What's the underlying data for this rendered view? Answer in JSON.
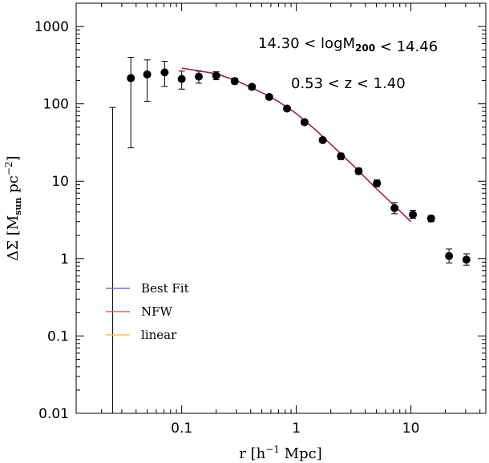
{
  "chart_data": {
    "type": "scatter",
    "x_scale": "log",
    "y_scale": "log",
    "xlim": [
      0.012,
      45
    ],
    "ylim": [
      0.01,
      2000
    ],
    "xlabel": {
      "main": "r  [h",
      "sup": "−1",
      "tail": " Mpc]"
    },
    "ylabel": {
      "pre": "ΔΣ  [M",
      "sub": "sun",
      "mid": "  pc",
      "sup": "−2",
      "tail": "]"
    },
    "x_ticks": [
      {
        "value": 0.1,
        "label": "0.1"
      },
      {
        "value": 1,
        "label": "1"
      },
      {
        "value": 10,
        "label": "10"
      }
    ],
    "y_ticks": [
      {
        "value": 0.01,
        "label": "0.01"
      },
      {
        "value": 0.1,
        "label": "0.1"
      },
      {
        "value": 1,
        "label": "1"
      },
      {
        "value": 10,
        "label": "10"
      },
      {
        "value": 100,
        "label": "100"
      },
      {
        "value": 1000,
        "label": "1000"
      }
    ],
    "annotations": [
      {
        "parts": [
          {
            "t": "14.30  <  logM"
          },
          {
            "t": "200",
            "sub": true
          },
          {
            "t": "  <  14.46"
          }
        ]
      },
      {
        "parts": [
          {
            "t": "0.53  <  z  <  1.40"
          }
        ]
      }
    ],
    "legend": {
      "position": "lower-left",
      "entries": [
        {
          "label": "Best Fit",
          "color": "#6f6ff0"
        },
        {
          "label": "NFW",
          "color": "#ef5a5a"
        },
        {
          "label": "linear",
          "color": "#f2c24a"
        }
      ]
    },
    "fit_curve": {
      "color": "#a02050",
      "points": [
        [
          0.1,
          290
        ],
        [
          0.2,
          245
        ],
        [
          0.3,
          200
        ],
        [
          0.5,
          140
        ],
        [
          0.7,
          107
        ],
        [
          1.0,
          75
        ],
        [
          1.5,
          45
        ],
        [
          2.0,
          30
        ],
        [
          3.0,
          17
        ],
        [
          5.0,
          8
        ],
        [
          7.0,
          5
        ],
        [
          10.0,
          3
        ]
      ]
    },
    "points": [
      {
        "x": 0.025,
        "y": null,
        "ylo": 0.01,
        "yhi": 90
      },
      {
        "x": 0.036,
        "y": 215,
        "ylo": 27,
        "yhi": 400
      },
      {
        "x": 0.05,
        "y": 240,
        "ylo": 108,
        "yhi": 370
      },
      {
        "x": 0.071,
        "y": 255,
        "ylo": 168,
        "yhi": 355
      },
      {
        "x": 0.1,
        "y": 210,
        "ylo": 155,
        "yhi": 265
      },
      {
        "x": 0.141,
        "y": 225,
        "ylo": 185,
        "yhi": 265
      },
      {
        "x": 0.2,
        "y": 232,
        "ylo": 205,
        "yhi": 260
      },
      {
        "x": 0.29,
        "y": 197,
        "ylo": 180,
        "yhi": 215
      },
      {
        "x": 0.41,
        "y": 166,
        "ylo": 154,
        "yhi": 178
      },
      {
        "x": 0.58,
        "y": 123,
        "ylo": 115,
        "yhi": 131
      },
      {
        "x": 0.83,
        "y": 87,
        "ylo": 82,
        "yhi": 92
      },
      {
        "x": 1.18,
        "y": 58,
        "ylo": 54,
        "yhi": 62
      },
      {
        "x": 1.7,
        "y": 34,
        "ylo": 31.5,
        "yhi": 36.5
      },
      {
        "x": 2.45,
        "y": 21,
        "ylo": 19,
        "yhi": 23
      },
      {
        "x": 3.5,
        "y": 13.5,
        "ylo": 12.3,
        "yhi": 14.7
      },
      {
        "x": 5.05,
        "y": 9.4,
        "ylo": 8.5,
        "yhi": 10.4
      },
      {
        "x": 7.2,
        "y": 4.5,
        "ylo": 3.8,
        "yhi": 5.3
      },
      {
        "x": 10.4,
        "y": 3.7,
        "ylo": 3.3,
        "yhi": 4.2
      },
      {
        "x": 15.0,
        "y": 3.3,
        "ylo": 3.0,
        "yhi": 3.6
      },
      {
        "x": 21.5,
        "y": 1.08,
        "ylo": 0.88,
        "yhi": 1.33
      },
      {
        "x": 30.5,
        "y": 0.97,
        "ylo": 0.82,
        "yhi": 1.15
      }
    ]
  }
}
